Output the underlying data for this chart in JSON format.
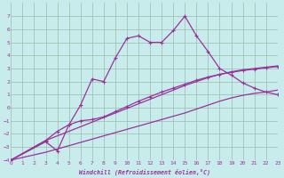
{
  "xlabel": "Windchill (Refroidissement éolien,°C)",
  "bg_color": "#c8ecec",
  "line_color": "#993399",
  "grid_color": "#aaccaa",
  "xlim": [
    0,
    23
  ],
  "ylim": [
    -4,
    8
  ],
  "xticks": [
    0,
    1,
    2,
    3,
    4,
    5,
    6,
    7,
    8,
    9,
    10,
    11,
    12,
    13,
    14,
    15,
    16,
    17,
    18,
    19,
    20,
    21,
    22,
    23
  ],
  "yticks": [
    -4,
    -3,
    -2,
    -1,
    0,
    1,
    2,
    3,
    4,
    5,
    6,
    7
  ],
  "lines": [
    {
      "x": [
        0,
        1,
        2,
        3,
        4,
        5,
        6,
        7,
        8,
        9,
        10,
        11,
        12,
        13,
        14,
        15,
        16,
        17,
        18,
        19,
        20,
        21,
        22,
        23
      ],
      "y": [
        -4,
        -3.8,
        -3.6,
        -3.4,
        -3.15,
        -2.9,
        -2.65,
        -2.4,
        -2.15,
        -1.9,
        -1.65,
        -1.4,
        -1.15,
        -0.9,
        -0.65,
        -0.4,
        -0.1,
        0.2,
        0.5,
        0.75,
        0.95,
        1.1,
        1.2,
        1.35
      ],
      "marker": false
    },
    {
      "x": [
        0,
        1,
        2,
        3,
        4,
        5,
        6,
        7,
        8,
        9,
        10,
        11,
        12,
        13,
        14,
        15,
        16,
        17,
        18,
        19,
        20,
        21,
        22,
        23
      ],
      "y": [
        -4,
        -3.5,
        -3.0,
        -2.5,
        -2.15,
        -1.8,
        -1.45,
        -1.1,
        -0.75,
        -0.4,
        -0.05,
        0.3,
        0.65,
        1.0,
        1.35,
        1.7,
        2.0,
        2.3,
        2.55,
        2.75,
        2.9,
        3.0,
        3.1,
        3.2
      ],
      "marker": false
    },
    {
      "x": [
        0,
        3,
        4,
        5,
        6,
        7,
        8,
        9,
        10,
        11,
        12,
        13,
        14,
        15,
        16,
        17,
        18,
        19,
        20,
        21,
        22,
        23
      ],
      "y": [
        -4,
        -2.5,
        -1.8,
        -1.3,
        -1.0,
        -0.9,
        -0.7,
        -0.3,
        0.1,
        0.5,
        0.85,
        1.2,
        1.5,
        1.8,
        2.1,
        2.35,
        2.55,
        2.7,
        2.85,
        2.95,
        3.05,
        3.15
      ],
      "marker": true
    },
    {
      "x": [
        0,
        3,
        4,
        5,
        6,
        7,
        8,
        9,
        10,
        11,
        12,
        13,
        14,
        15,
        16,
        17,
        18,
        19,
        20,
        21,
        22,
        23
      ],
      "y": [
        -4,
        -2.6,
        -3.3,
        -1.3,
        0.2,
        2.2,
        2.0,
        3.8,
        5.3,
        5.5,
        5.0,
        5.0,
        5.9,
        7.0,
        5.5,
        4.3,
        3.0,
        2.5,
        1.9,
        1.5,
        1.2,
        1.0
      ],
      "marker": true
    }
  ]
}
